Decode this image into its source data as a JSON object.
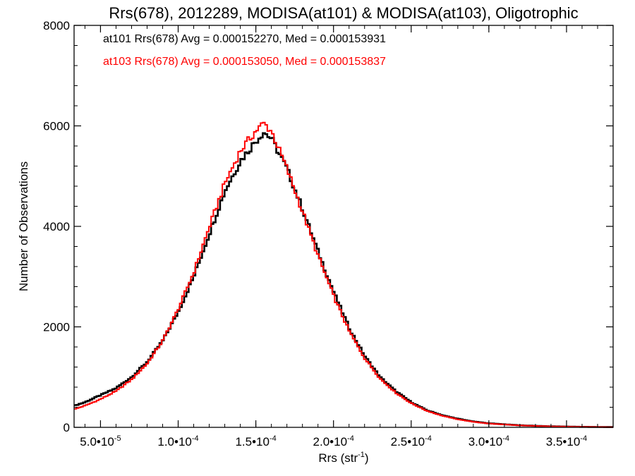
{
  "chart_data": {
    "type": "histogram",
    "title": "Rrs(678), 2012289, MODISA(at101) & MODISA(at103), Oligotrophic",
    "xlabel": "Rrs (str",
    "xlabel_exp": "-1",
    "xlabel_close": ")",
    "ylabel": "Number of Observations",
    "xlim": [
      3.3e-05,
      0.00038
    ],
    "ylim": [
      0,
      8000
    ],
    "grid": false,
    "x_ticks": [
      {
        "mant": "5.0",
        "exp": "-5",
        "value": 5e-05
      },
      {
        "mant": "1.0",
        "exp": "-4",
        "value": 0.0001
      },
      {
        "mant": "1.5",
        "exp": "-4",
        "value": 0.00015
      },
      {
        "mant": "2.0",
        "exp": "-4",
        "value": 0.0002
      },
      {
        "mant": "2.5",
        "exp": "-4",
        "value": 0.00025
      },
      {
        "mant": "3.0",
        "exp": "-4",
        "value": 0.0003
      },
      {
        "mant": "3.5",
        "exp": "-4",
        "value": 0.00035
      }
    ],
    "x_tick_sep": "•10",
    "y_ticks": [
      {
        "label": "0",
        "value": 0
      },
      {
        "label": "2000",
        "value": 2000
      },
      {
        "label": "4000",
        "value": 4000
      },
      {
        "label": "6000",
        "value": 6000
      },
      {
        "label": "8000",
        "value": 8000
      }
    ],
    "series": [
      {
        "name": "at101",
        "color": "#000000",
        "stat_text": "at101 Rrs(678) Avg = 0.000152270, Med = 0.000153931",
        "x": [
          3.3e-05,
          4e-05,
          5e-05,
          6e-05,
          7e-05,
          8e-05,
          9e-05,
          0.0001,
          0.00011,
          0.00012,
          0.00013,
          0.00014,
          0.00015,
          0.000155,
          0.00016,
          0.00017,
          0.00018,
          0.00019,
          0.0002,
          0.00021,
          0.00022,
          0.00023,
          0.00024,
          0.00025,
          0.00026,
          0.00027,
          0.00028,
          0.00029,
          0.0003,
          0.00032,
          0.00034,
          0.00036,
          0.00038
        ],
        "y": [
          430,
          500,
          640,
          780,
          1000,
          1300,
          1720,
          2300,
          3000,
          3850,
          4700,
          5300,
          5700,
          5880,
          5750,
          5150,
          4350,
          3500,
          2700,
          1980,
          1420,
          1000,
          720,
          500,
          340,
          240,
          170,
          115,
          80,
          40,
          20,
          10,
          5
        ]
      },
      {
        "name": "at103",
        "color": "#ff0000",
        "stat_text": "at103 Rrs(678) Avg = 0.000153050, Med = 0.000153837",
        "x": [
          3.3e-05,
          4e-05,
          5e-05,
          6e-05,
          7e-05,
          8e-05,
          9e-05,
          0.0001,
          0.00011,
          0.00012,
          0.00013,
          0.00014,
          0.00015,
          0.000155,
          0.00016,
          0.00017,
          0.00018,
          0.00019,
          0.0002,
          0.00021,
          0.00022,
          0.00023,
          0.00024,
          0.00025,
          0.00026,
          0.00027,
          0.00028,
          0.00029,
          0.0003,
          0.00032,
          0.00034,
          0.00036,
          0.00038
        ],
        "y": [
          360,
          430,
          560,
          720,
          950,
          1270,
          1720,
          2350,
          3080,
          3980,
          4850,
          5500,
          5900,
          6050,
          5900,
          5150,
          4300,
          3420,
          2620,
          1920,
          1380,
          970,
          690,
          480,
          330,
          230,
          160,
          110,
          75,
          38,
          18,
          9,
          4
        ]
      }
    ]
  }
}
